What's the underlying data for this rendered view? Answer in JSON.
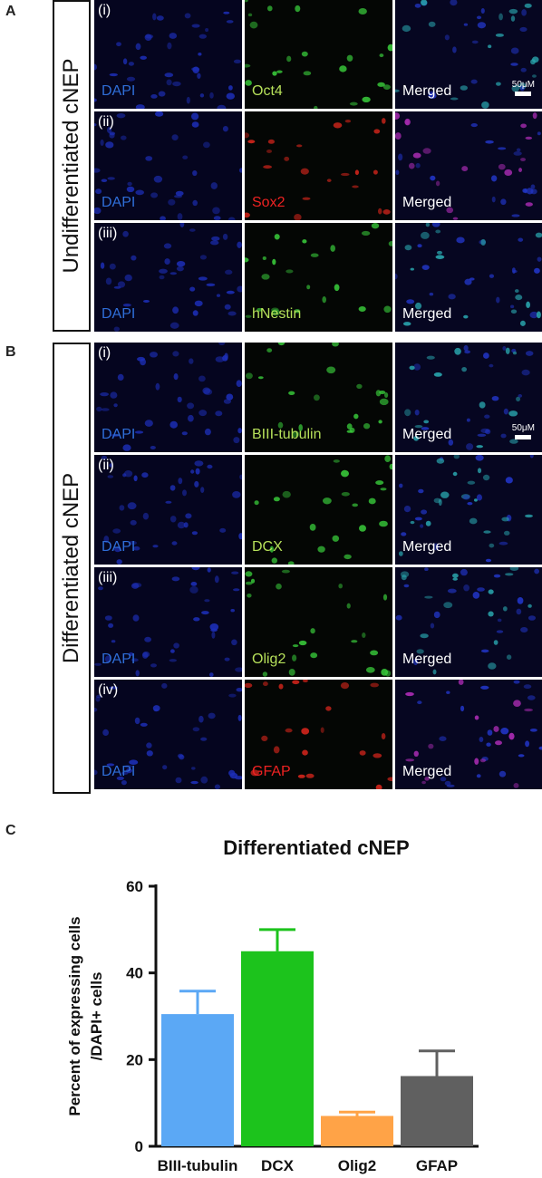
{
  "panel_a": {
    "letter": "A",
    "side_label": "Undifferentiated cNEP",
    "scale_bar": "50μM",
    "rows": [
      {
        "roman": "(i)",
        "labels": [
          "DAPI",
          "Oct4",
          "Merged"
        ],
        "stain": "green"
      },
      {
        "roman": "(ii)",
        "labels": [
          "DAPI",
          "Sox2",
          "Merged"
        ],
        "stain": "red"
      },
      {
        "roman": "(iii)",
        "labels": [
          "DAPI",
          "hNestin",
          "Merged"
        ],
        "stain": "green"
      }
    ]
  },
  "panel_b": {
    "letter": "B",
    "side_label": "Differentiated cNEP",
    "scale_bar": "50μM",
    "rows": [
      {
        "roman": "(i)",
        "labels": [
          "DAPI",
          "BIII-tubulin",
          "Merged"
        ],
        "stain": "green"
      },
      {
        "roman": "(ii)",
        "labels": [
          "DAPI",
          "DCX",
          "Merged"
        ],
        "stain": "green"
      },
      {
        "roman": "(iii)",
        "labels": [
          "DAPI",
          "Olig2",
          "Merged"
        ],
        "stain": "green"
      },
      {
        "roman": "(iv)",
        "labels": [
          "DAPI",
          "GFAP",
          "Merged"
        ],
        "stain": "red"
      }
    ]
  },
  "label_colors": {
    "dapi": "#2f6ed8",
    "green": "#b6e05a",
    "red": "#ee2222",
    "merged": "#ffffff"
  },
  "panel_c": {
    "letter": "C"
  },
  "chart_data": {
    "type": "bar",
    "title": "Differentiated cNEP",
    "ylabel_lines": [
      "Percent of expressing cells",
      "/DAPI+ cells"
    ],
    "categories": [
      "BIII-tubulin",
      "DCX",
      "Olig2",
      "GFAP"
    ],
    "values": [
      30.5,
      45,
      7,
      16.2
    ],
    "errors": [
      5.3,
      5,
      0.9,
      5.8
    ],
    "colors": [
      "#5ba8f5",
      "#1cc31c",
      "#ffa347",
      "#606060"
    ],
    "ylim": [
      0,
      60
    ],
    "yticks": [
      0,
      20,
      40,
      60
    ]
  }
}
